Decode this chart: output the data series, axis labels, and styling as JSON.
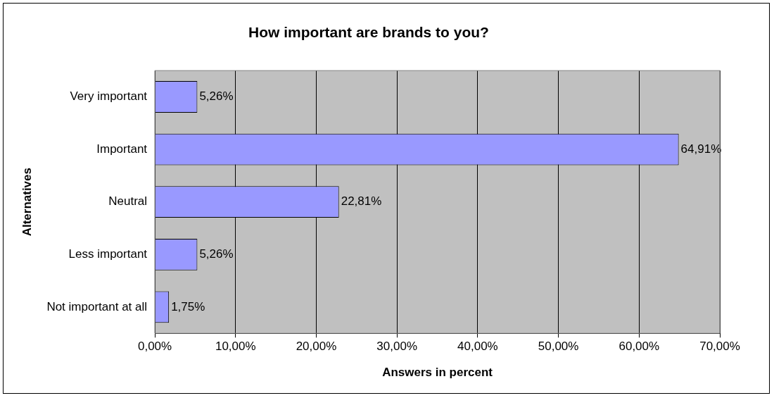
{
  "chart_data": {
    "type": "bar",
    "orientation": "horizontal",
    "title": "How important are brands to you?",
    "xlabel": "Answers in percent",
    "ylabel": "Alternatives",
    "categories": [
      "Very important",
      "Important",
      "Neutral",
      "Less important",
      "Not important at all"
    ],
    "values": [
      5.26,
      64.91,
      22.81,
      5.26,
      1.75
    ],
    "value_labels": [
      "5,26%",
      "64,91%",
      "22,81%",
      "5,26%",
      "1,75%"
    ],
    "color": "#9999ff",
    "xlim": [
      0,
      70
    ],
    "xticks": [
      {
        "value": 0,
        "label": "0,00%"
      },
      {
        "value": 10,
        "label": "10,00%"
      },
      {
        "value": 20,
        "label": "20,00%"
      },
      {
        "value": 30,
        "label": "30,00%"
      },
      {
        "value": 40,
        "label": "40,00%"
      },
      {
        "value": 50,
        "label": "50,00%"
      },
      {
        "value": 60,
        "label": "60,00%"
      },
      {
        "value": 70,
        "label": "70,00%"
      }
    ],
    "grid": "x",
    "legend": false
  }
}
